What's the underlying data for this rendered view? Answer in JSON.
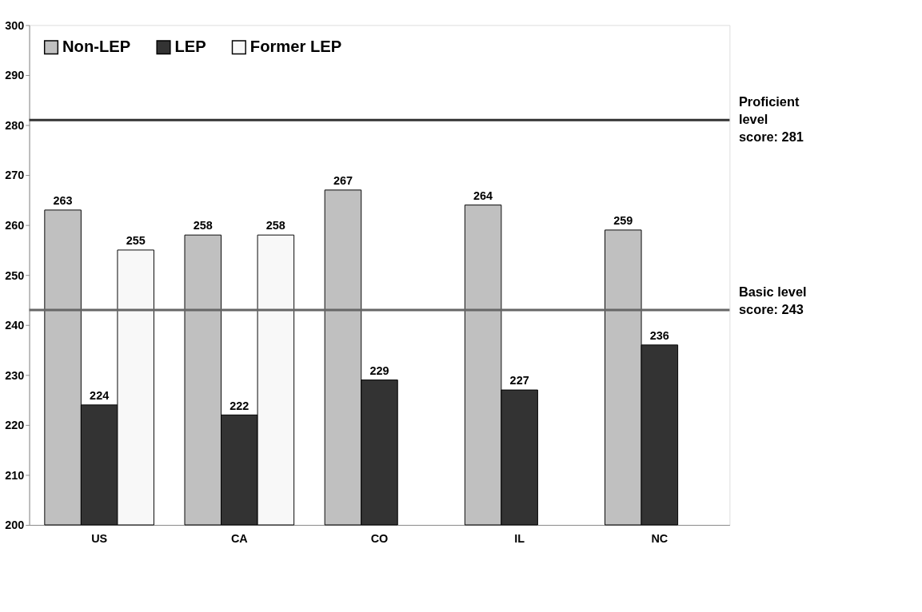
{
  "chart_data": {
    "type": "bar",
    "categories": [
      "US",
      "CA",
      "CO",
      "IL",
      "NC"
    ],
    "series": [
      {
        "name": "Non-LEP",
        "color": "#c0c0c0",
        "values": [
          263,
          258,
          267,
          264,
          259
        ]
      },
      {
        "name": "LEP",
        "color": "#333333",
        "values": [
          224,
          222,
          229,
          227,
          236
        ]
      },
      {
        "name": "Former LEP",
        "color": "#f8f8f8",
        "values": [
          255,
          258,
          null,
          null,
          null
        ]
      }
    ],
    "ylim": [
      200,
      300
    ],
    "yticks": [
      200,
      210,
      220,
      230,
      240,
      250,
      260,
      270,
      280,
      290,
      300
    ],
    "grid": false,
    "legend": "top left",
    "data_labels": true,
    "ref_lines": [
      {
        "axis": "y",
        "value": 281,
        "label": "Proficient\nlevel\nscore: 281",
        "color": "#333333"
      },
      {
        "axis": "y",
        "value": 243,
        "label": "Basic level\nscore: 243",
        "color": "#666666"
      }
    ]
  }
}
